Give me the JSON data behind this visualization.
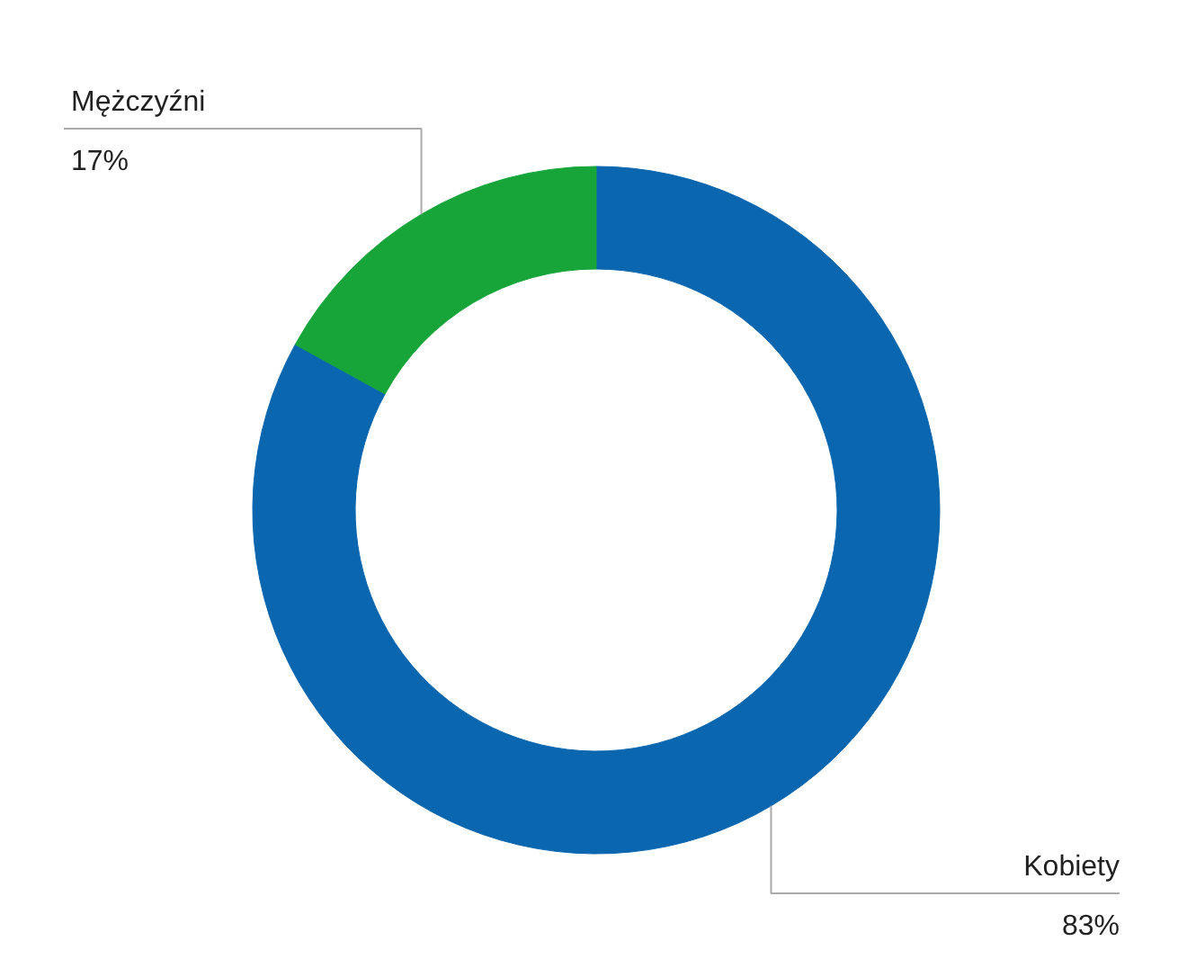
{
  "chart_data": {
    "type": "donut",
    "categories": [
      "Kobiety",
      "Mężczyźni"
    ],
    "values": [
      83,
      17
    ],
    "colors": [
      "#0b66b0",
      "#17a53a"
    ],
    "value_labels": [
      "83%",
      "17%"
    ]
  }
}
